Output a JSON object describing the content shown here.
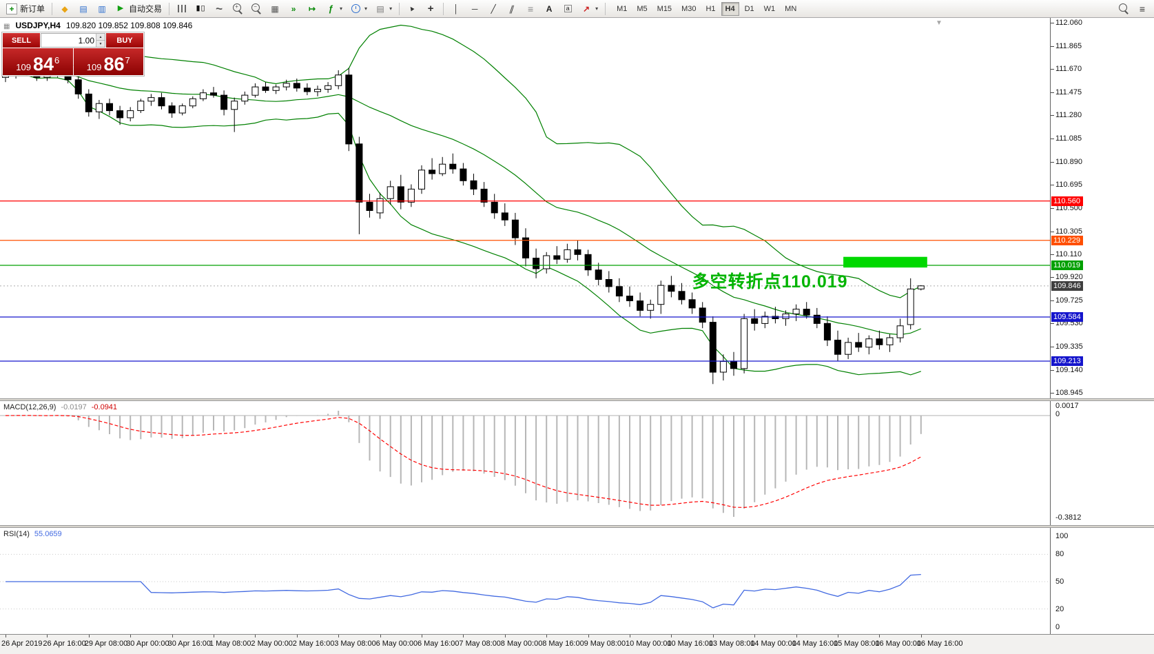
{
  "toolbar": {
    "new_order_label": "新订单",
    "autotrading_label": "自动交易",
    "timeframes": [
      "M1",
      "M5",
      "M15",
      "M30",
      "H1",
      "H4",
      "D1",
      "W1",
      "MN"
    ],
    "active_timeframe": "H4"
  },
  "quote_header": {
    "symbol": "USDJPY,H4",
    "ohlc": "109.820 109.852 109.808 109.846"
  },
  "one_click": {
    "sell_label": "SELL",
    "buy_label": "BUY",
    "volume": "1.00",
    "sell_prefix": "109",
    "sell_big": "84",
    "sell_sup": "6",
    "buy_prefix": "109",
    "buy_big": "86",
    "buy_sup": "7"
  },
  "annotation": {
    "text": "多空转折点110.019",
    "color": "#00b400"
  },
  "chart_data": {
    "type": "candlestick",
    "symbol": "USDJPY",
    "timeframe": "H4",
    "price_axis": {
      "min": 108.9,
      "max": 112.1,
      "ticks": [
        "112.060",
        "111.865",
        "111.670",
        "111.475",
        "111.280",
        "111.085",
        "110.890",
        "110.695",
        "110.500",
        "110.305",
        "110.110",
        "109.920",
        "109.725",
        "109.530",
        "109.335",
        "109.140",
        "108.945"
      ]
    },
    "time_labels": [
      "26 Apr 2019",
      "26 Apr 16:00",
      "29 Apr 08:00",
      "30 Apr 00:00",
      "30 Apr 16:00",
      "1 May 08:00",
      "2 May 00:00",
      "2 May 16:00",
      "3 May 08:00",
      "6 May 00:00",
      "6 May 16:00",
      "7 May 08:00",
      "8 May 00:00",
      "8 May 16:00",
      "9 May 08:00",
      "10 May 00:00",
      "10 May 16:00",
      "13 May 08:00",
      "14 May 00:00",
      "14 May 16:00",
      "15 May 08:00",
      "16 May 00:00",
      "16 May 16:00"
    ],
    "candles_ohlc": [
      [
        111.6,
        111.66,
        111.56,
        111.63
      ],
      [
        111.63,
        111.68,
        111.59,
        111.65
      ],
      [
        111.65,
        111.7,
        111.61,
        111.63
      ],
      [
        111.63,
        111.66,
        111.57,
        111.6
      ],
      [
        111.6,
        111.65,
        111.57,
        111.63
      ],
      [
        111.63,
        111.68,
        111.6,
        111.66
      ],
      [
        111.66,
        111.69,
        111.55,
        111.58
      ],
      [
        111.58,
        111.61,
        111.42,
        111.46
      ],
      [
        111.46,
        111.5,
        111.27,
        111.31
      ],
      [
        111.31,
        111.41,
        111.25,
        111.38
      ],
      [
        111.38,
        111.42,
        111.28,
        111.32
      ],
      [
        111.32,
        111.36,
        111.2,
        111.26
      ],
      [
        111.26,
        111.35,
        111.23,
        111.32
      ],
      [
        111.32,
        111.42,
        111.3,
        111.4
      ],
      [
        111.4,
        111.46,
        111.36,
        111.43
      ],
      [
        111.43,
        111.47,
        111.33,
        111.36
      ],
      [
        111.36,
        111.39,
        111.26,
        111.3
      ],
      [
        111.3,
        111.38,
        111.28,
        111.36
      ],
      [
        111.36,
        111.44,
        111.34,
        111.42
      ],
      [
        111.42,
        111.5,
        111.4,
        111.47
      ],
      [
        111.47,
        111.52,
        111.43,
        111.45
      ],
      [
        111.45,
        111.49,
        111.28,
        111.33
      ],
      [
        111.33,
        111.43,
        111.14,
        111.4
      ],
      [
        111.4,
        111.48,
        111.37,
        111.45
      ],
      [
        111.45,
        111.55,
        111.43,
        111.52
      ],
      [
        111.52,
        111.56,
        111.47,
        111.49
      ],
      [
        111.49,
        111.54,
        111.46,
        111.52
      ],
      [
        111.52,
        111.58,
        111.49,
        111.55
      ],
      [
        111.55,
        111.59,
        111.48,
        111.51
      ],
      [
        111.51,
        111.55,
        111.45,
        111.48
      ],
      [
        111.48,
        111.53,
        111.44,
        111.5
      ],
      [
        111.5,
        111.56,
        111.47,
        111.53
      ],
      [
        111.53,
        111.66,
        111.5,
        111.62
      ],
      [
        111.62,
        111.68,
        110.98,
        111.04
      ],
      [
        111.04,
        111.1,
        110.28,
        110.55
      ],
      [
        110.55,
        110.62,
        110.42,
        110.48
      ],
      [
        110.46,
        110.63,
        110.41,
        110.58
      ],
      [
        110.58,
        110.73,
        110.53,
        110.68
      ],
      [
        110.68,
        110.78,
        110.49,
        110.55
      ],
      [
        110.55,
        110.7,
        110.51,
        110.66
      ],
      [
        110.66,
        110.86,
        110.62,
        110.82
      ],
      [
        110.82,
        110.92,
        110.74,
        110.79
      ],
      [
        110.79,
        110.93,
        110.77,
        110.87
      ],
      [
        110.87,
        110.96,
        110.79,
        110.83
      ],
      [
        110.83,
        110.88,
        110.69,
        110.73
      ],
      [
        110.73,
        110.79,
        110.61,
        110.66
      ],
      [
        110.66,
        110.72,
        110.51,
        110.55
      ],
      [
        110.55,
        110.62,
        110.41,
        110.46
      ],
      [
        110.46,
        110.54,
        110.35,
        110.4
      ],
      [
        110.4,
        110.46,
        110.19,
        110.25
      ],
      [
        110.25,
        110.33,
        110.01,
        110.08
      ],
      [
        110.08,
        110.16,
        109.91,
        109.99
      ],
      [
        109.99,
        110.13,
        109.95,
        110.1
      ],
      [
        110.1,
        110.18,
        110.03,
        110.07
      ],
      [
        110.07,
        110.2,
        110.04,
        110.15
      ],
      [
        110.15,
        110.23,
        110.06,
        110.11
      ],
      [
        110.11,
        110.15,
        109.93,
        109.98
      ],
      [
        109.98,
        110.04,
        109.85,
        109.9
      ],
      [
        109.9,
        109.97,
        109.79,
        109.84
      ],
      [
        109.84,
        109.91,
        109.71,
        109.76
      ],
      [
        109.76,
        109.84,
        109.67,
        109.72
      ],
      [
        109.72,
        109.79,
        109.59,
        109.64
      ],
      [
        109.64,
        109.73,
        109.57,
        109.69
      ],
      [
        109.69,
        109.89,
        109.61,
        109.85
      ],
      [
        109.85,
        109.93,
        109.75,
        109.8
      ],
      [
        109.8,
        109.87,
        109.69,
        109.73
      ],
      [
        109.73,
        109.79,
        109.61,
        109.66
      ],
      [
        109.66,
        109.71,
        109.49,
        109.54
      ],
      [
        109.54,
        109.59,
        109.02,
        109.12
      ],
      [
        109.12,
        109.27,
        109.05,
        109.21
      ],
      [
        109.21,
        109.29,
        109.09,
        109.15
      ],
      [
        109.15,
        109.61,
        109.11,
        109.57
      ],
      [
        109.57,
        109.65,
        109.47,
        109.53
      ],
      [
        109.53,
        109.63,
        109.49,
        109.59
      ],
      [
        109.59,
        109.67,
        109.53,
        109.57
      ],
      [
        109.57,
        109.64,
        109.51,
        109.61
      ],
      [
        109.61,
        109.69,
        109.55,
        109.65
      ],
      [
        109.65,
        109.71,
        109.57,
        109.6
      ],
      [
        109.6,
        109.66,
        109.49,
        109.53
      ],
      [
        109.53,
        109.59,
        109.34,
        109.39
      ],
      [
        109.39,
        109.47,
        109.21,
        109.27
      ],
      [
        109.27,
        109.41,
        109.23,
        109.37
      ],
      [
        109.37,
        109.45,
        109.29,
        109.33
      ],
      [
        109.33,
        109.43,
        109.27,
        109.4
      ],
      [
        109.4,
        109.47,
        109.31,
        109.35
      ],
      [
        109.35,
        109.44,
        109.29,
        109.41
      ],
      [
        109.41,
        109.57,
        109.37,
        109.51
      ],
      [
        109.52,
        109.91,
        109.48,
        109.82
      ],
      [
        109.82,
        109.852,
        109.808,
        109.846
      ]
    ],
    "bollinger": {
      "period": 20,
      "deviation": 2,
      "color": "#008000"
    },
    "levels": [
      {
        "price": 110.56,
        "label": "110.560",
        "color": "#ff0000"
      },
      {
        "price": 110.229,
        "label": "110.229",
        "color": "#ff4f00"
      },
      {
        "price": 110.019,
        "label": "110.019",
        "color": "#00a000"
      },
      {
        "price": 109.584,
        "label": "109.584",
        "color": "#1515cc"
      },
      {
        "price": 109.213,
        "label": "109.213",
        "color": "#1515cc"
      }
    ],
    "bid": {
      "price": 109.846,
      "label": "109.846",
      "tag_color": "#3f3f3f"
    },
    "highlight_rect": {
      "from_candle": 81,
      "to_candle": 88,
      "price_top": 110.09,
      "price_bottom": 110.0,
      "color": "#00d800"
    },
    "indicators": [
      {
        "name": "MACD",
        "label": "MACD(12,26,9)",
        "value": "-0.0197",
        "signal_value": "-0.0941",
        "axis_labels": [
          "0.0017",
          "0",
          "-0.3812"
        ],
        "histogram_color": "#b6b6b6",
        "signal_color": "#ff0000"
      },
      {
        "name": "RSI",
        "label": "RSI(14)",
        "value": "55.0659",
        "axis_labels": [
          "100",
          "80",
          "50",
          "20",
          "0"
        ],
        "levels": [
          80,
          50,
          20
        ],
        "line_color": "#4169e1"
      }
    ]
  }
}
